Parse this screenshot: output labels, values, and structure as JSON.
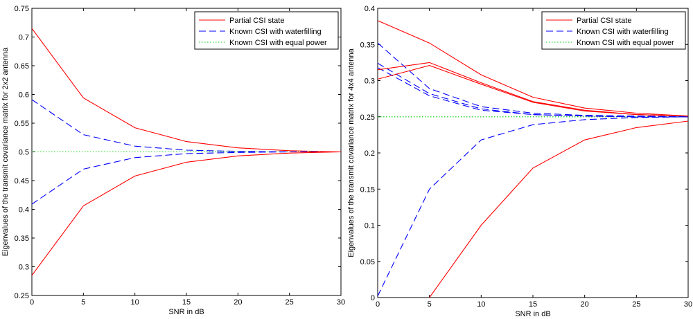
{
  "chart_data": [
    {
      "type": "line",
      "xlabel": "SNR in dB",
      "ylabel": "Eigenvalues of the transmit covariance matrix for 2x2 antenna",
      "xlim": [
        0,
        30
      ],
      "ylim": [
        0.25,
        0.75
      ],
      "xticks": [
        "0",
        "5",
        "10",
        "15",
        "20",
        "25",
        "30"
      ],
      "yticks": [
        "0.25",
        "0.3",
        "0.35",
        "0.4",
        "0.45",
        "0.5",
        "0.55",
        "0.6",
        "0.65",
        "0.7",
        "0.75"
      ],
      "grid": false,
      "legend_position": "top-right",
      "legend": [
        "Partial CSI state",
        "Known CSI with waterfilling",
        "Known CSI with equal power"
      ],
      "x": [
        0,
        5,
        10,
        15,
        20,
        25,
        30
      ],
      "series": [
        {
          "group": 0,
          "values": [
            0.715,
            0.594,
            0.542,
            0.518,
            0.507,
            0.502,
            0.5
          ]
        },
        {
          "group": 0,
          "values": [
            0.285,
            0.406,
            0.458,
            0.482,
            0.493,
            0.498,
            0.5
          ]
        },
        {
          "group": 1,
          "values": [
            0.591,
            0.53,
            0.51,
            0.503,
            0.501,
            0.5,
            0.5
          ]
        },
        {
          "group": 1,
          "values": [
            0.409,
            0.47,
            0.49,
            0.497,
            0.499,
            0.5,
            0.5
          ]
        },
        {
          "group": 2,
          "values": [
            0.5,
            0.5,
            0.5,
            0.5,
            0.5,
            0.5,
            0.5
          ]
        }
      ]
    },
    {
      "type": "line",
      "xlabel": "SNR in dB",
      "ylabel": "Eigenvalues of the transmit covariance matrix for 4x4 antenna",
      "xlim": [
        0,
        30
      ],
      "ylim": [
        0,
        0.4
      ],
      "xticks": [
        "0",
        "5",
        "10",
        "15",
        "20",
        "25",
        "30"
      ],
      "yticks": [
        "0",
        "0.05",
        "0.1",
        "0.15",
        "0.2",
        "0.25",
        "0.3",
        "0.35",
        "0.4"
      ],
      "grid": false,
      "legend_position": "top-right",
      "legend": [
        "Partial CSI state",
        "Known CSI with waterfilling",
        "Known CSI with equal power"
      ],
      "x": [
        0,
        5,
        10,
        15,
        20,
        25,
        30
      ],
      "series": [
        {
          "group": 0,
          "values": [
            0.383,
            0.352,
            0.308,
            0.277,
            0.262,
            0.255,
            0.251
          ]
        },
        {
          "group": 0,
          "values": [
            0.315,
            0.325,
            0.297,
            0.271,
            0.259,
            0.253,
            0.251
          ]
        },
        {
          "group": 0,
          "values": [
            0.302,
            0.321,
            0.295,
            0.27,
            0.258,
            0.253,
            0.251
          ]
        },
        {
          "group": 0,
          "values": [
            null,
            0.0,
            0.1,
            0.179,
            0.218,
            0.235,
            0.244
          ]
        },
        {
          "group": 1,
          "values": [
            0.352,
            0.289,
            0.264,
            0.255,
            0.252,
            0.251,
            0.25
          ]
        },
        {
          "group": 1,
          "values": [
            0.324,
            0.282,
            0.261,
            0.253,
            0.251,
            0.25,
            0.25
          ]
        },
        {
          "group": 1,
          "values": [
            0.318,
            0.279,
            0.259,
            0.253,
            0.251,
            0.25,
            0.25
          ]
        },
        {
          "group": 1,
          "values": [
            0.002,
            0.15,
            0.218,
            0.239,
            0.246,
            0.249,
            0.25
          ]
        },
        {
          "group": 2,
          "values": [
            0.25,
            0.25,
            0.25,
            0.25,
            0.25,
            0.25,
            0.25
          ]
        }
      ]
    }
  ],
  "colors": {
    "partial_csi": "#ff0000",
    "waterfilling": "#0000ff",
    "equal_power": "#00cc00",
    "axis": "#000000",
    "background": "#ffffff"
  }
}
